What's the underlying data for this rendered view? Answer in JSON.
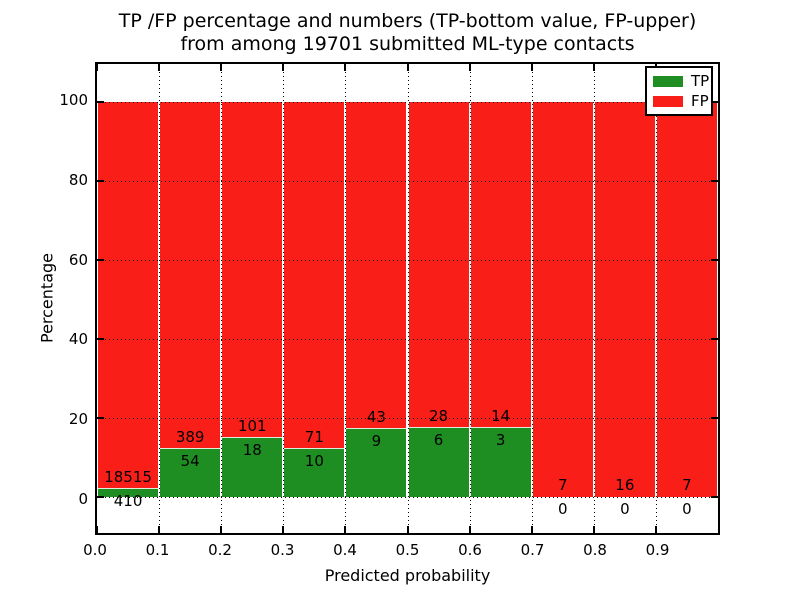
{
  "title": {
    "line1": "TP /FP percentage and numbers (TP-bottom value, FP-upper)",
    "line2": "from among 19701 submitted ML-type contacts"
  },
  "axes": {
    "xlabel": "Predicted probability",
    "ylabel": "Percentage",
    "xtick_labels": [
      "0.0",
      "0.1",
      "0.2",
      "0.3",
      "0.4",
      "0.5",
      "0.6",
      "0.7",
      "0.8",
      "0.9"
    ],
    "ytick_labels": [
      "0",
      "20",
      "40",
      "60",
      "80",
      "100"
    ],
    "ytick_values": [
      0,
      20,
      40,
      60,
      80,
      100
    ],
    "xlim": [
      0.0,
      1.0
    ],
    "ylim": [
      -9.0,
      109.5
    ],
    "grid_style": "dotted"
  },
  "legend": {
    "items": [
      {
        "label": "TP",
        "color": "#1f8e22"
      },
      {
        "label": "FP",
        "color": "#fa1e19"
      }
    ]
  },
  "colors": {
    "tp": "#1f8e22",
    "fp": "#fa1e19",
    "background": "#ffffff",
    "text": "#000000"
  },
  "chart_data": {
    "type": "bar",
    "stacked": true,
    "normalized": "each bin scaled to 100%",
    "title": "TP /FP percentage and numbers (TP-bottom value, FP-upper) from among 19701 submitted ML-type contacts",
    "xlabel": "Predicted probability",
    "ylabel": "Percentage",
    "total_contacts": 19701,
    "bin_left_edges": [
      0.0,
      0.1,
      0.2,
      0.3,
      0.4,
      0.5,
      0.6,
      0.7,
      0.8,
      0.9
    ],
    "bin_width": 0.1,
    "series": [
      {
        "name": "TP",
        "counts": [
          410,
          54,
          18,
          10,
          9,
          6,
          3,
          0,
          0,
          0
        ]
      },
      {
        "name": "FP",
        "counts": [
          18515,
          389,
          101,
          71,
          43,
          28,
          14,
          7,
          16,
          7
        ]
      }
    ],
    "tp_percentages": [
      2.17,
      12.19,
      15.13,
      12.35,
      17.31,
      17.65,
      17.65,
      0.0,
      0.0,
      0.0
    ],
    "ylim": [
      -9.0,
      109.5
    ],
    "legend_position": "upper right",
    "grid": true
  }
}
